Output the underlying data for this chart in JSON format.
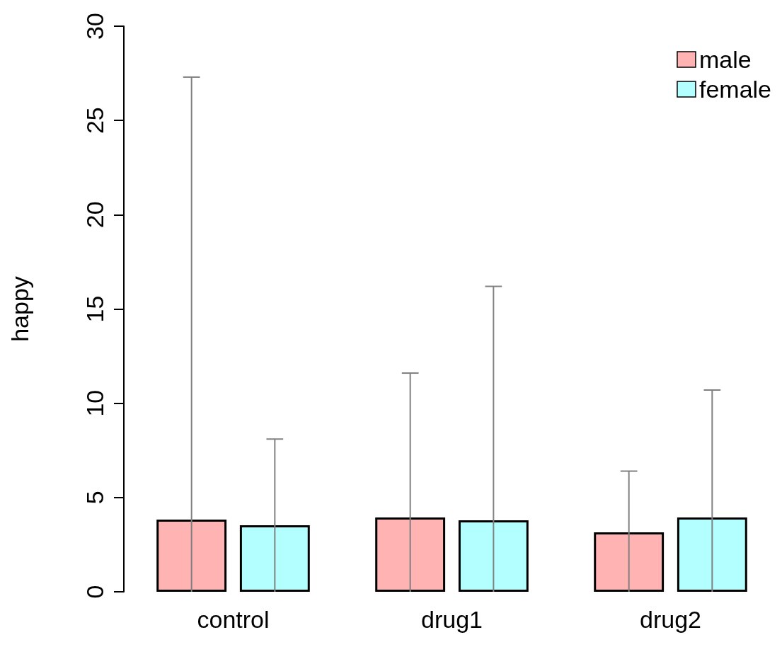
{
  "chart_data": {
    "type": "bar",
    "ylabel": "happy",
    "categories": [
      "control",
      "drug1",
      "drug2"
    ],
    "series": [
      {
        "name": "male",
        "color": "#ffb3b3",
        "values": [
          3.83,
          3.94,
          3.15
        ],
        "errors": [
          [
            0,
            27.3
          ],
          [
            0,
            11.6
          ],
          [
            0,
            6.4
          ]
        ]
      },
      {
        "name": "female",
        "color": "#b3ffff",
        "values": [
          3.53,
          3.79,
          3.94
        ],
        "errors": [
          [
            0,
            8.1
          ],
          [
            0,
            16.2
          ],
          [
            0,
            10.7
          ]
        ]
      }
    ],
    "ylim": [
      0,
      30
    ],
    "yticks": [
      0,
      5,
      10,
      15,
      20,
      25,
      30
    ],
    "grid": false,
    "legend": "top right"
  }
}
